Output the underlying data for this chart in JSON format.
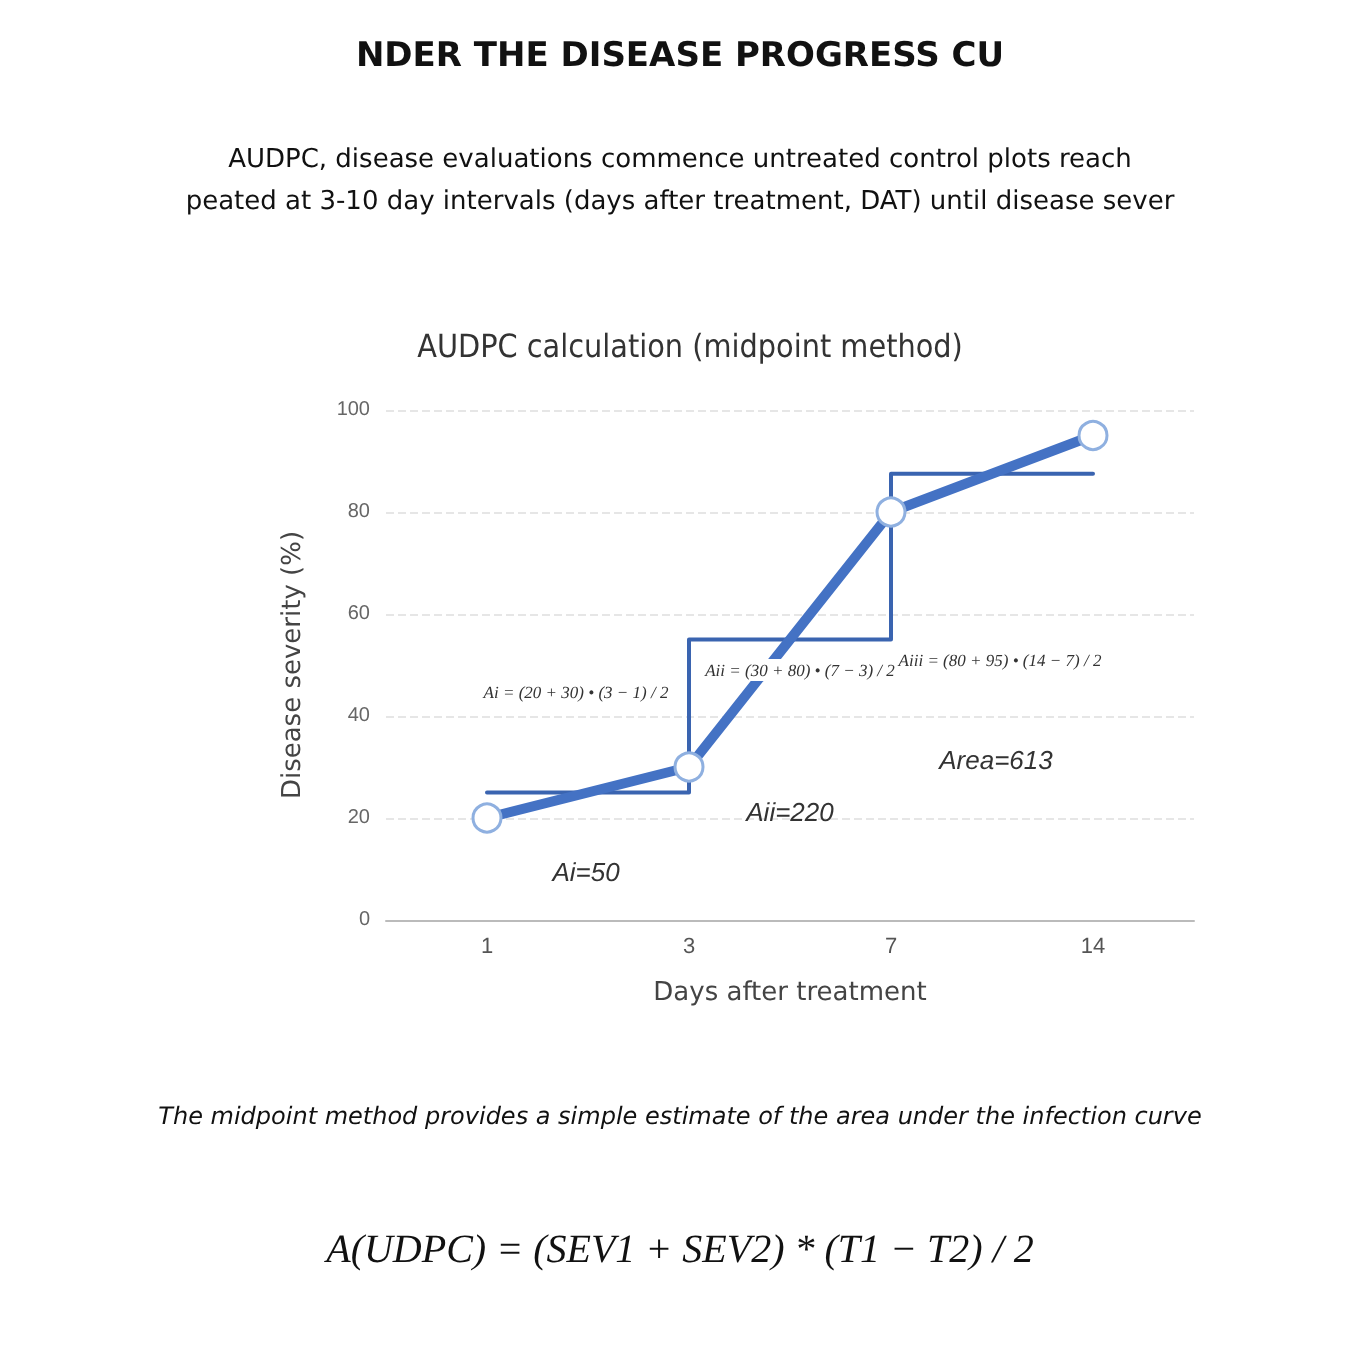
{
  "chart_data": {
    "type": "line",
    "title": "AUDPC calculation (midpoint method)",
    "xlabel": "Days after treatment",
    "ylabel": "Disease severity (%)",
    "categories": [
      "1",
      "3",
      "7",
      "14"
    ],
    "series": [
      {
        "color": "#4472c4",
        "values": [
          20,
          30,
          80,
          95
        ],
        "marker": "circle"
      },
      {
        "type": "step",
        "color": "#3a64b0",
        "values": [
          25,
          55,
          87.5,
          87.5
        ],
        "marker": "none"
      }
    ],
    "ylim": [
      0,
      100
    ],
    "yticks": [
      0,
      20,
      40,
      60,
      80,
      100
    ],
    "grid": "y",
    "annotations": [
      "NDER THE DISEASE PROGRESS CU",
      "AUDPC, disease evaluations commence untreated control plots reach",
      "peated at 3-10 day intervals (days after treatment, DAT) until disease sever",
      "Ai = (20 + 30) • (3 − 1) / 2",
      "Aii = (30 + 80) • (7 − 3) / 2",
      "Aiii = (80 + 95) • (14 − 7) / 2",
      "Ai=50",
      "Aii=220",
      "Area=613",
      "The midpoint method provides a simple estimate of the area under the infection curve",
      "A(UDPC) = (SEV1 + SEV2) * (T1 − T2) / 2"
    ]
  }
}
